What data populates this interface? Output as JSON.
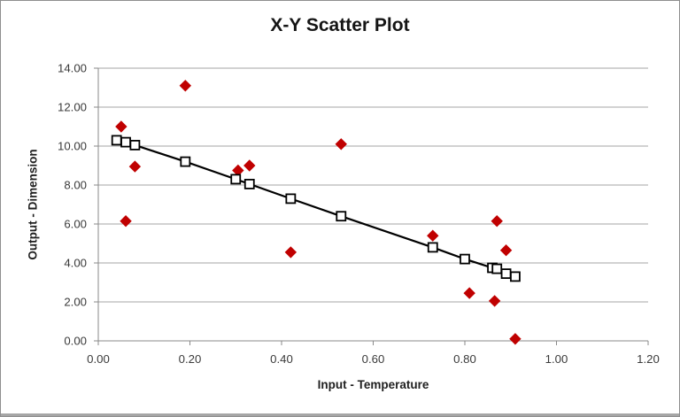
{
  "window": {
    "background": "#ffffff",
    "border_color": "#8f8f8f",
    "bottom_strip_color": "#a6a6a6"
  },
  "chart_data": {
    "type": "scatter",
    "title": "X-Y Scatter Plot",
    "xlabel": "Input - Temperature",
    "ylabel": "Output - Dimension",
    "xlim": [
      0.0,
      1.2
    ],
    "ylim": [
      0.0,
      14.0
    ],
    "x_ticks": [
      "0.00",
      "0.20",
      "0.40",
      "0.60",
      "0.80",
      "1.00",
      "1.20"
    ],
    "y_ticks": [
      "0.00",
      "2.00",
      "4.00",
      "6.00",
      "8.00",
      "10.00",
      "12.00",
      "14.00"
    ],
    "grid": "horizontal-only",
    "legend": "none",
    "colors": {
      "actual_fill": "#c00000",
      "predicted_fill": "#ffffff",
      "predicted_stroke": "#000000",
      "trend_line": "#000000",
      "gridline": "#a6a6a6",
      "axis_line": "#898989"
    },
    "series": [
      {
        "name": "actual",
        "marker": "diamond",
        "line": "none",
        "points": [
          [
            0.05,
            11.0
          ],
          [
            0.06,
            6.15
          ],
          [
            0.08,
            8.95
          ],
          [
            0.19,
            13.1
          ],
          [
            0.305,
            8.75
          ],
          [
            0.33,
            9.0
          ],
          [
            0.42,
            4.55
          ],
          [
            0.53,
            10.1
          ],
          [
            0.73,
            5.4
          ],
          [
            0.81,
            2.45
          ],
          [
            0.87,
            6.15
          ],
          [
            0.865,
            2.05
          ],
          [
            0.89,
            4.65
          ],
          [
            0.91,
            0.1
          ]
        ]
      },
      {
        "name": "predicted",
        "marker": "square",
        "line": "solid",
        "points": [
          [
            0.04,
            10.3
          ],
          [
            0.06,
            10.2
          ],
          [
            0.08,
            10.05
          ],
          [
            0.19,
            9.2
          ],
          [
            0.3,
            8.3
          ],
          [
            0.33,
            8.05
          ],
          [
            0.42,
            7.3
          ],
          [
            0.53,
            6.4
          ],
          [
            0.73,
            4.8
          ],
          [
            0.8,
            4.2
          ],
          [
            0.86,
            3.75
          ],
          [
            0.87,
            3.7
          ],
          [
            0.89,
            3.45
          ],
          [
            0.91,
            3.3
          ]
        ]
      }
    ]
  }
}
